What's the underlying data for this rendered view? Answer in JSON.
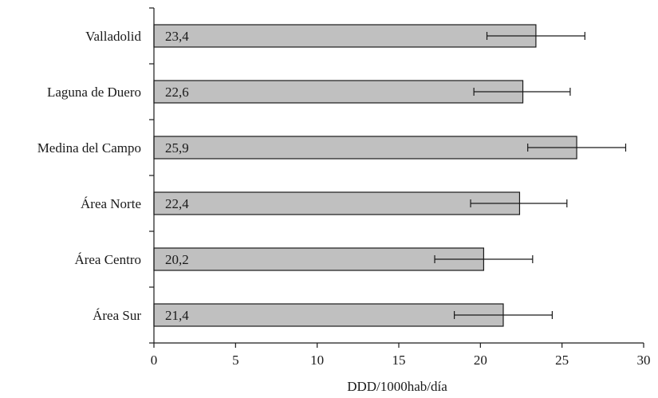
{
  "chart_data": {
    "type": "bar",
    "orientation": "horizontal",
    "categories": [
      "Valladolid",
      "Laguna de Duero",
      "Medina del Campo",
      "Área Norte",
      "Área Centro",
      "Área Sur"
    ],
    "values": [
      23.4,
      22.6,
      25.9,
      22.4,
      20.2,
      21.4
    ],
    "value_labels": [
      "23,4",
      "22,6",
      "25,9",
      "22,4",
      "20,2",
      "21,4"
    ],
    "error_bars": [
      [
        20.4,
        26.4
      ],
      [
        19.6,
        25.5
      ],
      [
        22.9,
        28.9
      ],
      [
        19.4,
        25.3
      ],
      [
        17.2,
        23.2
      ],
      [
        18.4,
        24.4
      ]
    ],
    "title": "",
    "xlabel": "DDD/1000hab/día",
    "ylabel": "",
    "xlim": [
      0,
      30
    ],
    "xticks": [
      0,
      5,
      10,
      15,
      20,
      25,
      30
    ],
    "grid": false,
    "colors": {
      "bar_fill": "#c0c0c0",
      "bar_stroke": "#1a1a1a",
      "axis": "#1a1a1a",
      "text": "#1a1a1a"
    }
  }
}
